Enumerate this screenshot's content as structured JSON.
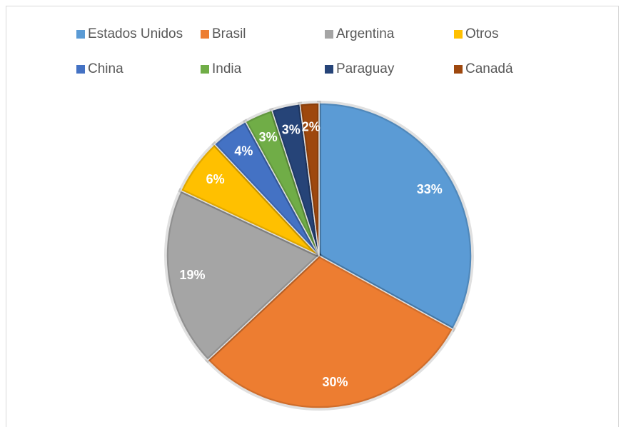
{
  "chart_data": {
    "type": "pie",
    "categories": [
      "Estados Unidos",
      "Brasil",
      "Argentina",
      "Otros",
      "China",
      "India",
      "Paraguay",
      "Canadá"
    ],
    "values": [
      33,
      30,
      19,
      6,
      4,
      3,
      3,
      2
    ],
    "value_labels": [
      "33%",
      "30%",
      "19%",
      "6%",
      "4%",
      "3%",
      "3%",
      "2%"
    ],
    "colors": [
      "#5b9bd5",
      "#ed7d31",
      "#a5a5a5",
      "#ffc000",
      "#4472c4",
      "#70ad47",
      "#264478",
      "#9e480e"
    ],
    "legend": "top"
  }
}
